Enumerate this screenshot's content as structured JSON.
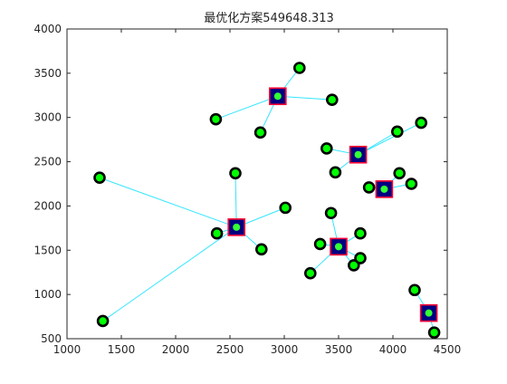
{
  "chart_data": {
    "type": "scatter",
    "title": "最优化方案549648.313",
    "xlabel": "",
    "ylabel": "",
    "xlim": [
      1000,
      4500
    ],
    "ylim": [
      500,
      4000
    ],
    "xticks": [
      1000,
      1500,
      2000,
      2500,
      3000,
      3500,
      4000,
      4500
    ],
    "yticks": [
      500,
      1000,
      1500,
      2000,
      2500,
      3000,
      3500,
      4000
    ],
    "grid": false,
    "legend": "none",
    "colors": {
      "link_line": "#33e6ff",
      "demand_point_fill": "#00ff00",
      "demand_point_edge": "#000000",
      "center_fill": "#000080",
      "center_edge": "#ff0033",
      "center_marker_fill": "#33ff33",
      "axis": "#262626",
      "background": "#ffffff"
    },
    "centers": [
      {
        "x": 2940,
        "y": 3240
      },
      {
        "x": 3680,
        "y": 2580
      },
      {
        "x": 3920,
        "y": 2190
      },
      {
        "x": 2560,
        "y": 1760
      },
      {
        "x": 3500,
        "y": 1540
      },
      {
        "x": 4330,
        "y": 790
      }
    ],
    "demand_points": [
      {
        "x": 2370,
        "y": 2980,
        "center": 0
      },
      {
        "x": 2780,
        "y": 2830,
        "center": 0
      },
      {
        "x": 3140,
        "y": 3560,
        "center": 0
      },
      {
        "x": 3440,
        "y": 3200,
        "center": 0
      },
      {
        "x": 3390,
        "y": 2650,
        "center": 1
      },
      {
        "x": 3470,
        "y": 2380,
        "center": 1
      },
      {
        "x": 4040,
        "y": 2840,
        "center": 1
      },
      {
        "x": 4260,
        "y": 2940,
        "center": 1
      },
      {
        "x": 3780,
        "y": 2210,
        "center": 2
      },
      {
        "x": 4060,
        "y": 2370,
        "center": 2
      },
      {
        "x": 4170,
        "y": 2250,
        "center": 2
      },
      {
        "x": 1300,
        "y": 2320,
        "center": 3
      },
      {
        "x": 1330,
        "y": 700,
        "center": 3
      },
      {
        "x": 2380,
        "y": 1690,
        "center": 3
      },
      {
        "x": 2550,
        "y": 2370,
        "center": 3
      },
      {
        "x": 2790,
        "y": 1510,
        "center": 3
      },
      {
        "x": 3010,
        "y": 1980,
        "center": 3
      },
      {
        "x": 3240,
        "y": 1240,
        "center": 4
      },
      {
        "x": 3330,
        "y": 1570,
        "center": 4
      },
      {
        "x": 3430,
        "y": 1920,
        "center": 4
      },
      {
        "x": 3640,
        "y": 1330,
        "center": 4
      },
      {
        "x": 3700,
        "y": 1410,
        "center": 4
      },
      {
        "x": 3700,
        "y": 1690,
        "center": 4
      },
      {
        "x": 4200,
        "y": 1050,
        "center": 5
      },
      {
        "x": 4380,
        "y": 570,
        "center": 5
      }
    ]
  }
}
